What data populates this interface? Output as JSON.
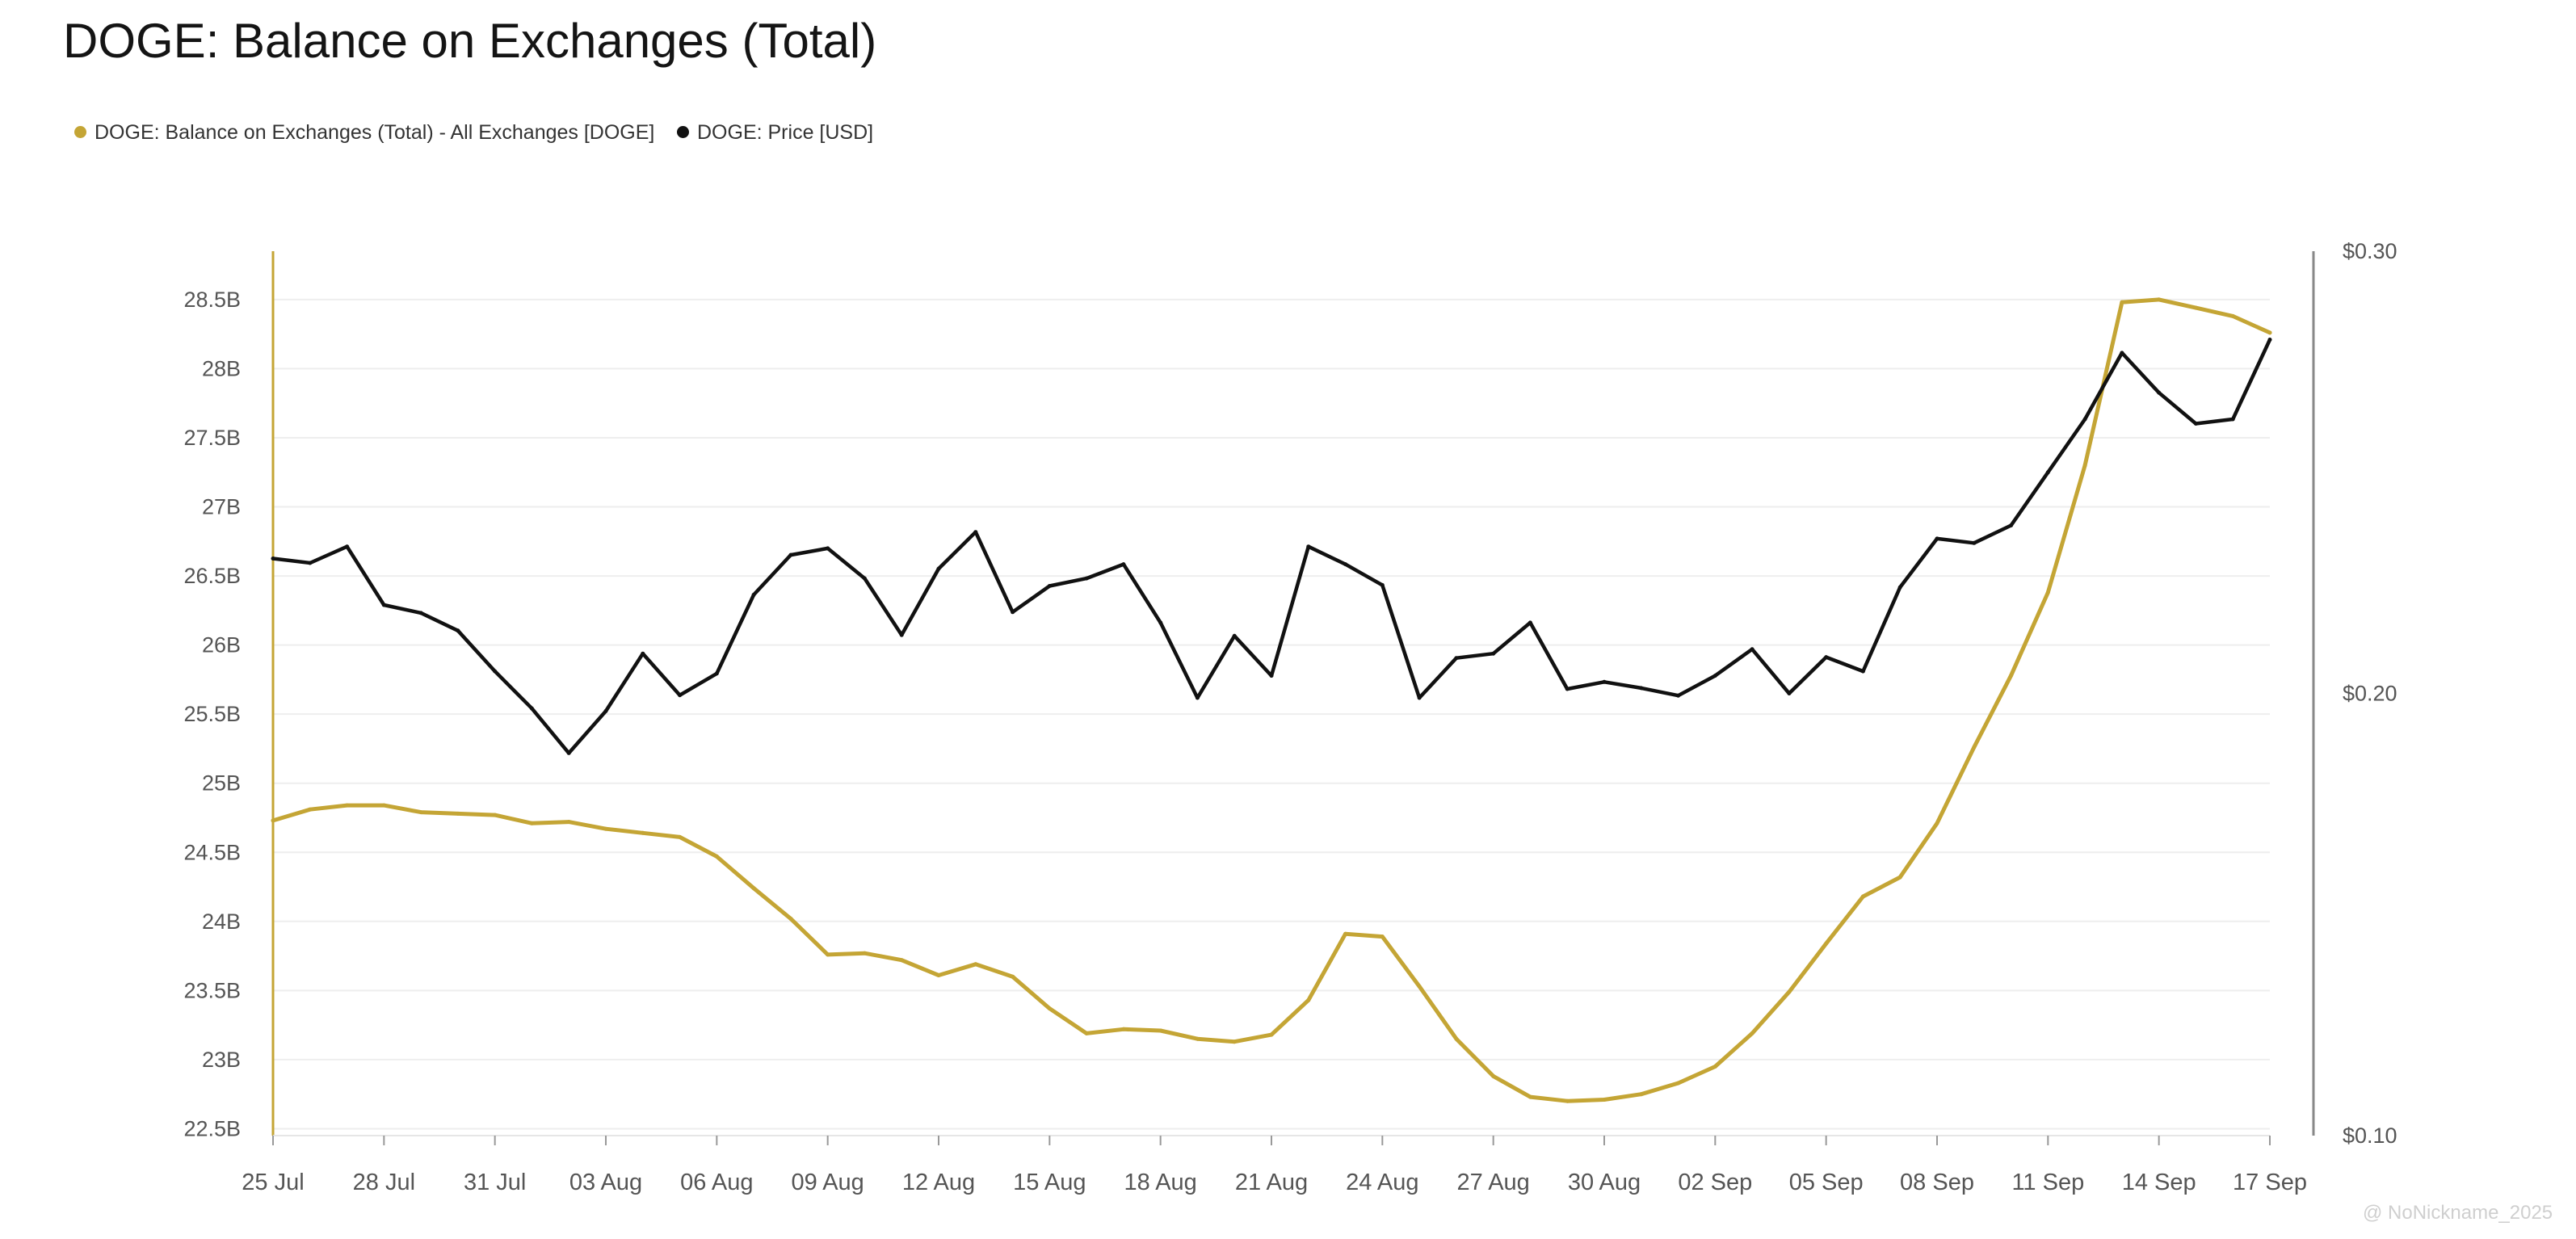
{
  "title": "DOGE: Balance on Exchanges (Total)",
  "watermark": "@ NoNickname_2025",
  "chart_data": {
    "type": "line",
    "title": "DOGE: Balance on Exchanges (Total)",
    "x_ticks": [
      "25 Jul",
      "28 Jul",
      "31 Jul",
      "03 Aug",
      "06 Aug",
      "09 Aug",
      "12 Aug",
      "15 Aug",
      "18 Aug",
      "21 Aug",
      "24 Aug",
      "27 Aug",
      "30 Aug",
      "02 Sep",
      "05 Sep",
      "08 Sep",
      "11 Sep",
      "14 Sep",
      "17 Sep"
    ],
    "x": [
      "25 Jul",
      "26 Jul",
      "27 Jul",
      "28 Jul",
      "29 Jul",
      "30 Jul",
      "31 Jul",
      "01 Aug",
      "02 Aug",
      "03 Aug",
      "04 Aug",
      "05 Aug",
      "06 Aug",
      "07 Aug",
      "08 Aug",
      "09 Aug",
      "10 Aug",
      "11 Aug",
      "12 Aug",
      "13 Aug",
      "14 Aug",
      "15 Aug",
      "16 Aug",
      "17 Aug",
      "18 Aug",
      "19 Aug",
      "20 Aug",
      "21 Aug",
      "22 Aug",
      "23 Aug",
      "24 Aug",
      "25 Aug",
      "26 Aug",
      "27 Aug",
      "28 Aug",
      "29 Aug",
      "30 Aug",
      "31 Aug",
      "01 Sep",
      "02 Sep",
      "03 Sep",
      "04 Sep",
      "05 Sep",
      "06 Sep",
      "07 Sep",
      "08 Sep",
      "09 Sep",
      "10 Sep",
      "11 Sep",
      "12 Sep",
      "13 Sep",
      "14 Sep",
      "15 Sep",
      "16 Sep",
      "17 Sep"
    ],
    "y_left": {
      "ticks": [
        "22.5B",
        "23B",
        "23.5B",
        "24B",
        "24.5B",
        "25B",
        "25.5B",
        "26B",
        "26.5B",
        "27B",
        "27.5B",
        "28B",
        "28.5B"
      ],
      "range": [
        22.45,
        28.85
      ],
      "color": "#c4a535"
    },
    "y_right": {
      "ticks": [
        "$0.10",
        "$0.20",
        "$0.30"
      ],
      "range": [
        0.1,
        0.3
      ],
      "color": "#555555"
    },
    "grid": true,
    "legend_position": "top-left",
    "series": [
      {
        "name": "DOGE: Balance on Exchanges (Total) - All Exchanges [DOGE]",
        "axis": "left",
        "color": "#c4a535",
        "values": [
          24.73,
          24.81,
          24.84,
          24.84,
          24.79,
          24.78,
          24.77,
          24.71,
          24.72,
          24.67,
          24.64,
          24.61,
          24.47,
          24.24,
          24.02,
          23.76,
          23.77,
          23.72,
          23.61,
          23.69,
          23.6,
          23.37,
          23.19,
          23.22,
          23.21,
          23.15,
          23.13,
          23.18,
          23.43,
          23.91,
          23.89,
          23.53,
          23.15,
          22.88,
          22.73,
          22.7,
          22.71,
          22.75,
          22.83,
          22.95,
          23.19,
          23.49,
          23.84,
          24.18,
          24.32,
          24.71,
          25.26,
          25.78,
          26.38,
          27.3,
          28.48,
          28.5,
          28.44,
          28.38,
          28.26
        ]
      },
      {
        "name": "DOGE: Price [USD]",
        "axis": "right",
        "color": "#111111",
        "values": [
          0.2305,
          0.2295,
          0.2332,
          0.22,
          0.2182,
          0.2142,
          0.205,
          0.1966,
          0.1865,
          0.196,
          0.209,
          0.1996,
          0.2045,
          0.2223,
          0.2313,
          0.2328,
          0.226,
          0.2132,
          0.2282,
          0.2365,
          0.2184,
          0.2243,
          0.226,
          0.2292,
          0.216,
          0.199,
          0.213,
          0.204,
          0.2332,
          0.2292,
          0.2245,
          0.199,
          0.208,
          0.209,
          0.216,
          0.201,
          0.2026,
          0.2012,
          0.1995,
          0.204,
          0.21,
          0.2,
          0.2082,
          0.205,
          0.224,
          0.235,
          0.234,
          0.238,
          0.25,
          0.262,
          0.277,
          0.268,
          0.261,
          0.262,
          0.28
        ]
      }
    ]
  }
}
